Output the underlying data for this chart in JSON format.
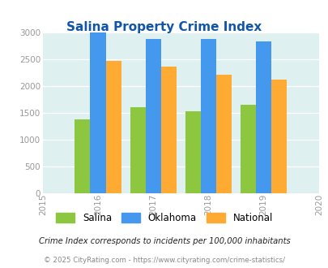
{
  "title": "Salina Property Crime Index",
  "years": [
    2016,
    2017,
    2018,
    2019
  ],
  "x_ticks": [
    2015,
    2016,
    2017,
    2018,
    2019,
    2020
  ],
  "salina": [
    1380,
    1600,
    1530,
    1640
  ],
  "oklahoma": [
    3000,
    2870,
    2870,
    2830
  ],
  "national": [
    2470,
    2360,
    2200,
    2110
  ],
  "colors": {
    "salina": "#8DC63F",
    "oklahoma": "#4499EE",
    "national": "#FFAA33"
  },
  "ylim": [
    0,
    3000
  ],
  "yticks": [
    0,
    500,
    1000,
    1500,
    2000,
    2500,
    3000
  ],
  "bg_color": "#DFF0F0",
  "title_color": "#1155AA",
  "footnote1": "Crime Index corresponds to incidents per 100,000 inhabitants",
  "footnote2": "© 2025 CityRating.com - https://www.cityrating.com/crime-statistics/",
  "footnote1_color": "#222222",
  "footnote2_color": "#888888",
  "bar_width": 0.28,
  "legend_labels": [
    "Salina",
    "Oklahoma",
    "National"
  ]
}
